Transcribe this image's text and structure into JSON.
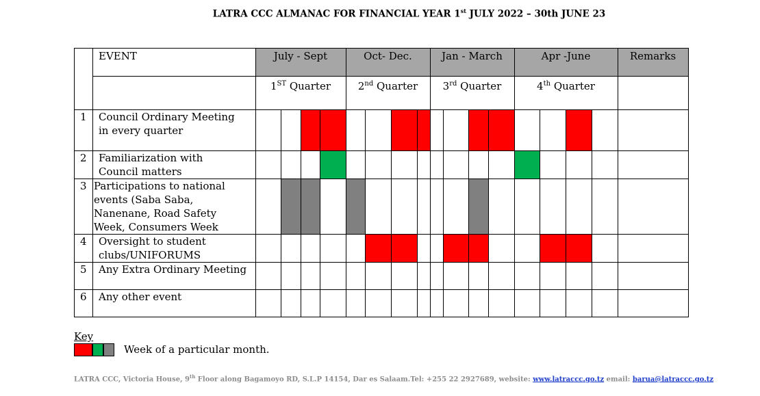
{
  "document": {
    "title_pre": "LATRA CCC ALMANAC FOR FINANCIAL YEAR 1",
    "title_sup": "st",
    "title_post": " JULY 2022 – 30th JUNE 23"
  },
  "table": {
    "event_header": "EVENT",
    "remarks_header": "Remarks",
    "periods": [
      {
        "label": "July - Sept",
        "q_num": "1",
        "q_sup": "ST",
        "q_word": " Quarter"
      },
      {
        "label": "Oct- Dec.",
        "q_num": "2",
        "q_sup": "nd",
        "q_word": " Quarter"
      },
      {
        "label": "Jan - March",
        "q_num": "3",
        "q_sup": "rd",
        "q_word": " Quarter"
      },
      {
        "label": "Apr -June",
        "q_num": "4",
        "q_sup": "th",
        "q_word": " Quarter"
      }
    ],
    "rows": [
      {
        "num": "1",
        "event": "Council Ordinary Meeting\nin every quarter"
      },
      {
        "num": "2",
        "event": " Familiarization with\nCouncil matters"
      },
      {
        "num": "3",
        "event": "Participations to national\nevents (Saba Saba,\nNanenane, Road Safety\nWeek, Consumers Week"
      },
      {
        "num": "4",
        "event": "Oversight to student\nclubs/UNIFORUMS"
      },
      {
        "num": "5",
        "event": "Any Extra Ordinary Meeting"
      },
      {
        "num": "6",
        "event": "Any other event"
      }
    ],
    "colors": {
      "red": "#ff0000",
      "green": "#00b050",
      "grey": "#808080",
      "header_bg": "#a6a6a6"
    },
    "marks": [
      {
        "row": 0,
        "week": 2,
        "color": "red"
      },
      {
        "row": 0,
        "week": 3,
        "color": "red"
      },
      {
        "row": 0,
        "week": 6,
        "color": "red"
      },
      {
        "row": 0,
        "week": 7,
        "color": "red"
      },
      {
        "row": 0,
        "week": 10,
        "color": "red"
      },
      {
        "row": 0,
        "week": 11,
        "color": "red"
      },
      {
        "row": 0,
        "week": 14,
        "color": "red"
      },
      {
        "row": 1,
        "week": 3,
        "color": "green"
      },
      {
        "row": 1,
        "week": 12,
        "color": "green"
      },
      {
        "row": 2,
        "week": 1,
        "color": "grey"
      },
      {
        "row": 2,
        "week": 2,
        "color": "grey"
      },
      {
        "row": 2,
        "week": 4,
        "color": "grey"
      },
      {
        "row": 2,
        "week": 10,
        "color": "grey"
      },
      {
        "row": 3,
        "week": 5,
        "color": "red"
      },
      {
        "row": 3,
        "week": 6,
        "color": "red"
      },
      {
        "row": 3,
        "week": 9,
        "color": "red"
      },
      {
        "row": 3,
        "week": 10,
        "color": "red"
      },
      {
        "row": 3,
        "week": 13,
        "color": "red"
      },
      {
        "row": 3,
        "week": 14,
        "color": "red"
      }
    ]
  },
  "key": {
    "label": "Key",
    "swatches": [
      "red",
      "green",
      "grey"
    ],
    "description": "Week of a particular month."
  },
  "footer": {
    "text_pre": "LATRA CCC, Victoria House, 9",
    "text_sup": "th",
    "text_mid": " Floor  along Bagamoyo RD,  S.L.P 14154, Dar es Salaam.Tel: +255 22 2927689, website: ",
    "website": "www.latraccc.go.tz",
    "text_email": " email: ",
    "email": "barua@latraccc.go.tz"
  }
}
